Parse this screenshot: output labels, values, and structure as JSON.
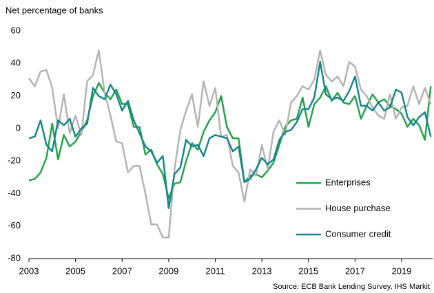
{
  "chart_data": {
    "type": "line",
    "y_label": "Net percentage of banks",
    "source": "Source: ECB Bank Lending Survey, IHS Markit",
    "x": [
      2003,
      2003.25,
      2003.5,
      2003.75,
      2004,
      2004.25,
      2004.5,
      2004.75,
      2005,
      2005.25,
      2005.5,
      2005.75,
      2006,
      2006.25,
      2006.5,
      2006.75,
      2007,
      2007.25,
      2007.5,
      2007.75,
      2008,
      2008.25,
      2008.5,
      2008.75,
      2009,
      2009.25,
      2009.5,
      2009.75,
      2010,
      2010.25,
      2010.5,
      2010.75,
      2011,
      2011.25,
      2011.5,
      2011.75,
      2012,
      2012.25,
      2012.5,
      2012.75,
      2013,
      2013.25,
      2013.5,
      2013.75,
      2014,
      2014.25,
      2014.5,
      2014.75,
      2015,
      2015.25,
      2015.5,
      2015.75,
      2016,
      2016.25,
      2016.5,
      2016.75,
      2017,
      2017.25,
      2017.5,
      2017.75,
      2018,
      2018.25,
      2018.5,
      2018.75,
      2019,
      2019.25,
      2019.5,
      2019.75,
      2020,
      2020.25
    ],
    "series": [
      {
        "name": "Enterprises",
        "color": "#22a34a",
        "values": [
          -32,
          -31,
          -27,
          -18,
          3,
          -19,
          -4,
          -11,
          -8,
          -2,
          5,
          20,
          28,
          22,
          18,
          24,
          15,
          15,
          1,
          1,
          -16,
          -13,
          -22,
          -28,
          -43,
          -34,
          -33,
          -20,
          -9,
          -13,
          -2,
          5,
          10,
          20,
          1,
          -6,
          -6,
          -33,
          -29,
          -28,
          -30,
          -26,
          -21,
          -10,
          1,
          5,
          6,
          19,
          1,
          15,
          19,
          26,
          17,
          22,
          16,
          15,
          20,
          6,
          14,
          21,
          16,
          18,
          14,
          12,
          9,
          1,
          6,
          2,
          -7,
          26
        ]
      },
      {
        "name": "House purchase",
        "color": "#b3b3b3",
        "values": [
          31,
          26,
          35,
          36,
          25,
          0,
          21,
          -3,
          8,
          -4,
          29,
          33,
          48,
          22,
          8,
          -8,
          -9,
          -27,
          -23,
          -23,
          -40,
          -59,
          -59,
          -67,
          -67,
          -25,
          -1,
          11,
          21,
          1,
          29,
          14,
          25,
          -5,
          -4,
          -23,
          -27,
          -45,
          -25,
          -29,
          -10,
          -25,
          -2,
          5,
          -4,
          16,
          20,
          26,
          24,
          30,
          48,
          33,
          29,
          32,
          26,
          41,
          38,
          24,
          20,
          13,
          8,
          6,
          21,
          6,
          13,
          14,
          26,
          15,
          25,
          15
        ]
      },
      {
        "name": "Consumer credit",
        "color": "#16868c",
        "values": [
          -6,
          -5,
          5,
          -10,
          -14,
          5,
          2,
          6,
          -5,
          0,
          3,
          25,
          20,
          18,
          27,
          21,
          11,
          17,
          5,
          -3,
          -11,
          -14,
          -21,
          -17,
          -49,
          -28,
          -24,
          -7,
          -11,
          -10,
          -17,
          -6,
          -4,
          -5,
          -6,
          -14,
          -11,
          -33,
          -31,
          -25,
          -18,
          -22,
          -19,
          -7,
          -2,
          -1,
          4,
          12,
          12,
          19,
          41,
          21,
          18,
          19,
          17,
          23,
          32,
          14,
          14,
          11,
          16,
          11,
          13,
          24,
          22,
          7,
          2,
          7,
          10,
          -5
        ]
      }
    ],
    "xlim": [
      2003,
      2020.33
    ],
    "xticks": [
      2003,
      2005,
      2007,
      2009,
      2011,
      2013,
      2015,
      2017,
      2019
    ],
    "ylim": [
      -80,
      60
    ],
    "yticks": [
      -80,
      -60,
      -40,
      -20,
      0,
      20,
      40,
      60
    ],
    "legend": "lower right"
  }
}
